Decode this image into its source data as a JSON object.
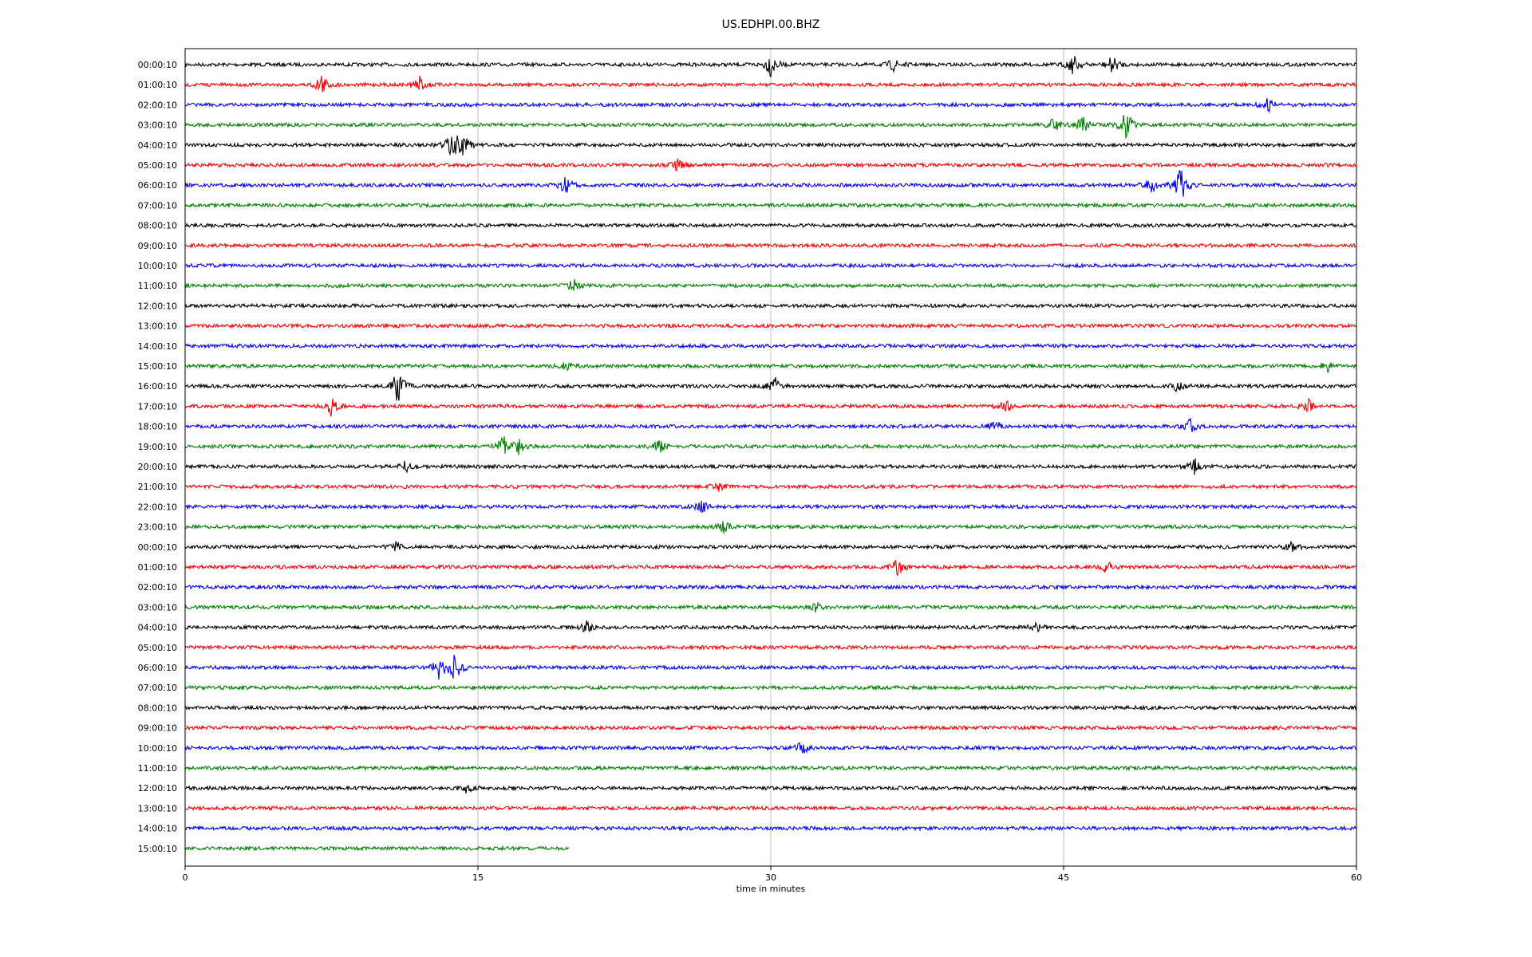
{
  "chart_data": {
    "type": "line",
    "title": "US.EDHPI.00.BHZ",
    "xlabel": "time in minutes",
    "ylabel": "",
    "xlim": [
      0,
      60
    ],
    "x_ticks": [
      0,
      15,
      30,
      45,
      60
    ],
    "grid": "vertical at x ticks",
    "trace_colors": [
      "#000000",
      "#ff0000",
      "#0000ff",
      "#008000"
    ],
    "row_labels": [
      "00:00:10",
      "01:00:10",
      "02:00:10",
      "03:00:10",
      "04:00:10",
      "05:00:10",
      "06:00:10",
      "07:00:10",
      "08:00:10",
      "09:00:10",
      "10:00:10",
      "11:00:10",
      "12:00:10",
      "13:00:10",
      "14:00:10",
      "15:00:10",
      "16:00:10",
      "17:00:10",
      "18:00:10",
      "19:00:10",
      "20:00:10",
      "21:00:10",
      "22:00:10",
      "23:00:10",
      "00:00:10",
      "01:00:10",
      "02:00:10",
      "03:00:10",
      "04:00:10",
      "05:00:10",
      "06:00:10",
      "07:00:10",
      "08:00:10",
      "09:00:10",
      "10:00:10",
      "11:00:10",
      "12:00:10",
      "13:00:10",
      "14:00:10",
      "15:00:10"
    ],
    "last_row_end_minutes": 19.7,
    "events": [
      {
        "row": 0,
        "minute": 30.0,
        "amp": 1.2
      },
      {
        "row": 0,
        "minute": 36.3,
        "amp": 0.6
      },
      {
        "row": 0,
        "minute": 45.5,
        "amp": 1.0
      },
      {
        "row": 0,
        "minute": 47.5,
        "amp": 0.9
      },
      {
        "row": 1,
        "minute": 7.0,
        "amp": 1.1
      },
      {
        "row": 1,
        "minute": 12.0,
        "amp": 0.9
      },
      {
        "row": 2,
        "minute": 55.5,
        "amp": 0.7
      },
      {
        "row": 3,
        "minute": 44.5,
        "amp": 0.8
      },
      {
        "row": 3,
        "minute": 46.0,
        "amp": 1.0
      },
      {
        "row": 3,
        "minute": 48.2,
        "amp": 1.5
      },
      {
        "row": 4,
        "minute": 13.6,
        "amp": 1.3
      },
      {
        "row": 4,
        "minute": 14.2,
        "amp": 1.6
      },
      {
        "row": 5,
        "minute": 25.2,
        "amp": 0.7
      },
      {
        "row": 6,
        "minute": 19.5,
        "amp": 0.9
      },
      {
        "row": 6,
        "minute": 49.5,
        "amp": 1.0
      },
      {
        "row": 6,
        "minute": 51.0,
        "amp": 1.9
      },
      {
        "row": 11,
        "minute": 19.9,
        "amp": 0.6
      },
      {
        "row": 15,
        "minute": 19.5,
        "amp": 0.5
      },
      {
        "row": 15,
        "minute": 58.5,
        "amp": 0.5
      },
      {
        "row": 16,
        "minute": 10.9,
        "amp": 1.9
      },
      {
        "row": 16,
        "minute": 30.2,
        "amp": 0.9
      },
      {
        "row": 16,
        "minute": 50.8,
        "amp": 0.5
      },
      {
        "row": 17,
        "minute": 7.5,
        "amp": 1.0
      },
      {
        "row": 17,
        "minute": 42.0,
        "amp": 0.7
      },
      {
        "row": 17,
        "minute": 57.5,
        "amp": 0.7
      },
      {
        "row": 18,
        "minute": 41.5,
        "amp": 0.6
      },
      {
        "row": 18,
        "minute": 51.5,
        "amp": 0.7
      },
      {
        "row": 19,
        "minute": 16.3,
        "amp": 1.0
      },
      {
        "row": 19,
        "minute": 17.1,
        "amp": 0.8
      },
      {
        "row": 19,
        "minute": 24.3,
        "amp": 0.6
      },
      {
        "row": 20,
        "minute": 11.3,
        "amp": 0.6
      },
      {
        "row": 20,
        "minute": 51.7,
        "amp": 0.8
      },
      {
        "row": 21,
        "minute": 27.3,
        "amp": 0.5
      },
      {
        "row": 22,
        "minute": 26.5,
        "amp": 0.6
      },
      {
        "row": 23,
        "minute": 27.6,
        "amp": 0.6
      },
      {
        "row": 24,
        "minute": 10.8,
        "amp": 0.5
      },
      {
        "row": 24,
        "minute": 56.7,
        "amp": 0.5
      },
      {
        "row": 25,
        "minute": 36.5,
        "amp": 0.9
      },
      {
        "row": 25,
        "minute": 47.2,
        "amp": 0.6
      },
      {
        "row": 27,
        "minute": 32.3,
        "amp": 0.5
      },
      {
        "row": 28,
        "minute": 20.6,
        "amp": 0.6
      },
      {
        "row": 28,
        "minute": 43.6,
        "amp": 0.4
      },
      {
        "row": 30,
        "minute": 13.0,
        "amp": 1.0
      },
      {
        "row": 30,
        "minute": 13.8,
        "amp": 1.7
      },
      {
        "row": 34,
        "minute": 31.6,
        "amp": 0.7
      },
      {
        "row": 36,
        "minute": 14.5,
        "amp": 0.6
      }
    ]
  }
}
